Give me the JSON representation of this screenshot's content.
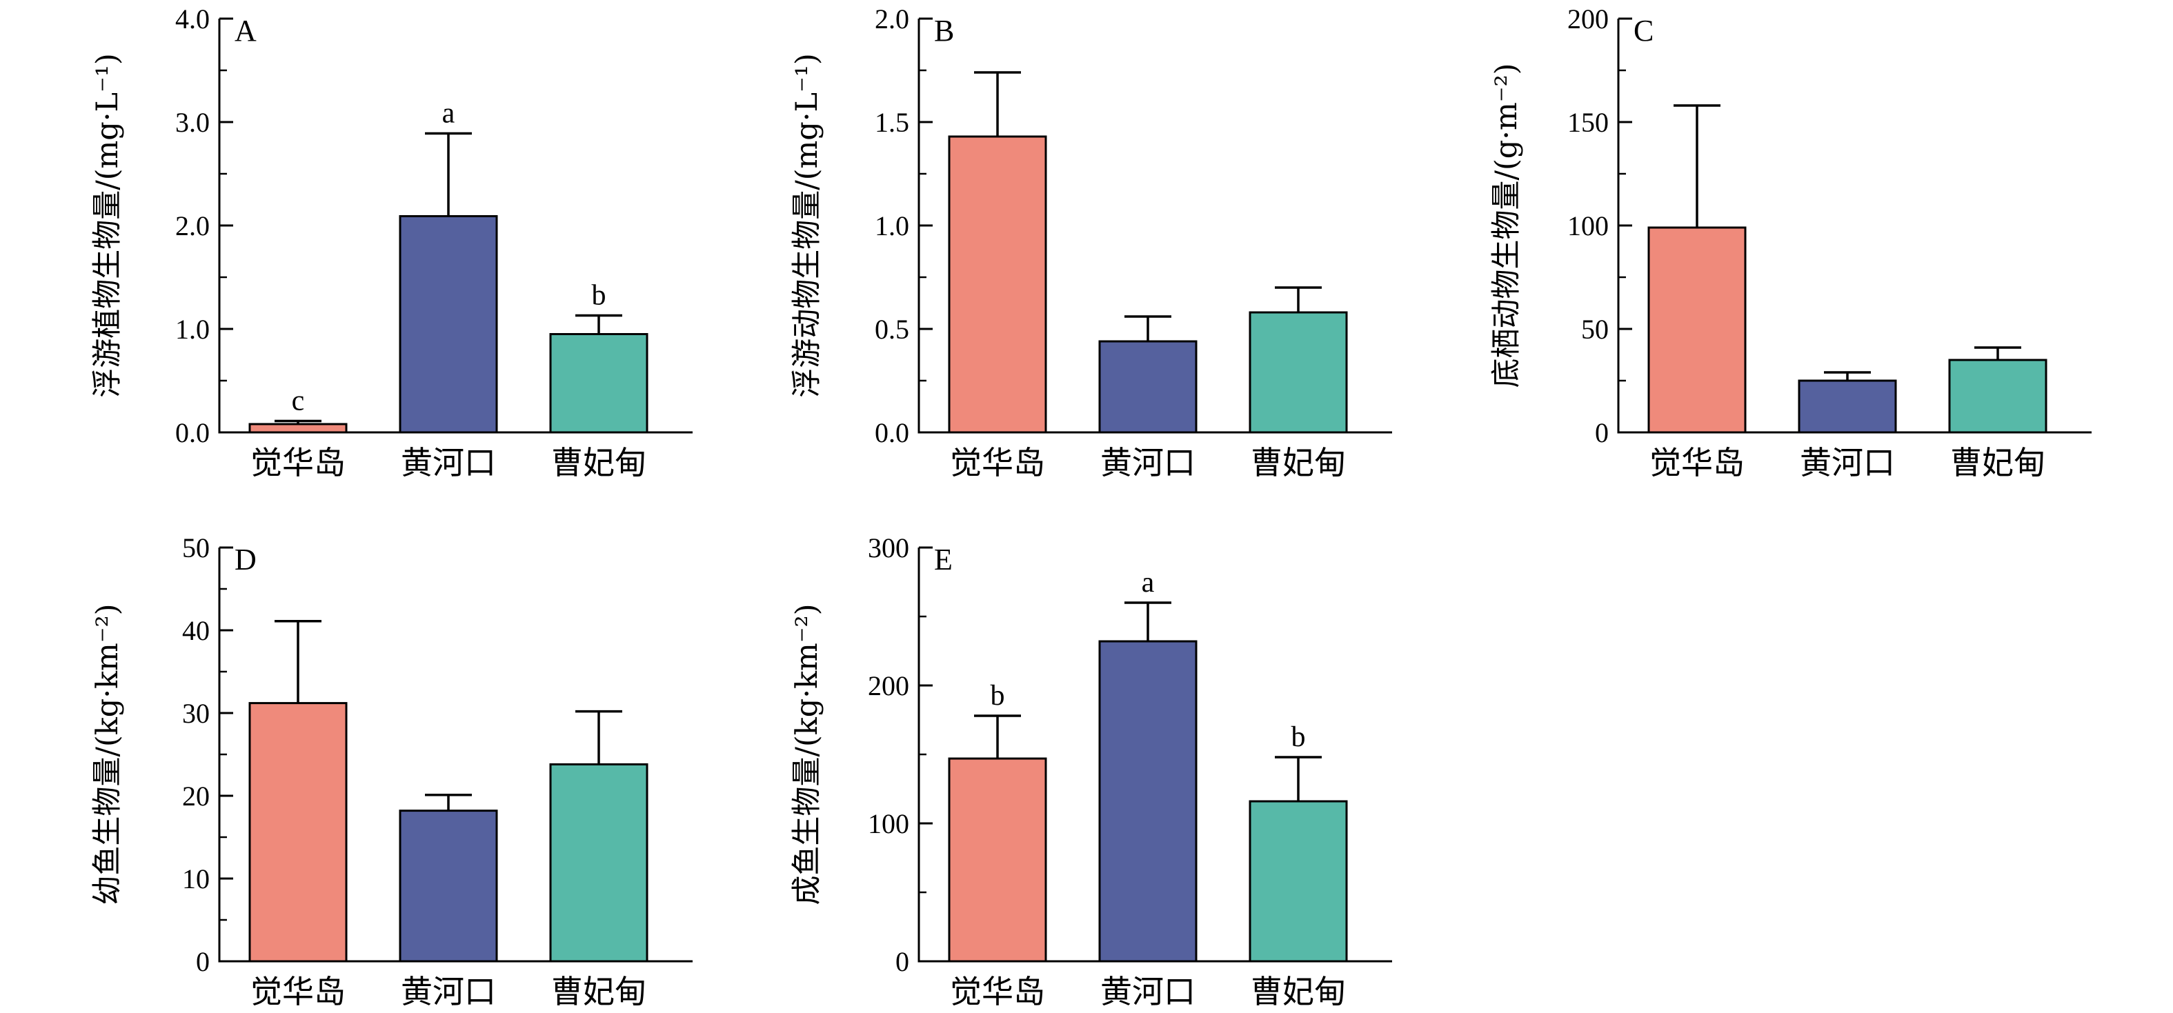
{
  "chart_data": [
    {
      "type": "bar",
      "panel": "A",
      "categories": [
        "觉华岛",
        "黄河口",
        "曹妃甸"
      ],
      "values": [
        0.08,
        2.09,
        0.95
      ],
      "errors": [
        0.03,
        0.8,
        0.18
      ],
      "significance": [
        "c",
        "a",
        "b"
      ],
      "ylabel": "浮游植物生物量/(mg·L⁻¹)",
      "ylim": [
        0,
        4
      ],
      "yticks": [
        "0.0",
        "1.0",
        "2.0",
        "3.0",
        "4.0"
      ],
      "ytick_values": [
        0,
        1,
        2,
        3,
        4
      ],
      "minor_step": 0.5,
      "colors": [
        "#EF8A7B",
        "#55619E",
        "#57B9A8"
      ]
    },
    {
      "type": "bar",
      "panel": "B",
      "categories": [
        "觉华岛",
        "黄河口",
        "曹妃甸"
      ],
      "values": [
        1.43,
        0.44,
        0.58
      ],
      "errors": [
        0.31,
        0.12,
        0.12
      ],
      "significance": [
        "",
        "",
        ""
      ],
      "ylabel": "浮游动物生物量/(mg·L⁻¹)",
      "ylim": [
        0,
        2
      ],
      "yticks": [
        "0.0",
        "0.5",
        "1.0",
        "1.5",
        "2.0"
      ],
      "ytick_values": [
        0,
        0.5,
        1,
        1.5,
        2
      ],
      "minor_step": 0.25,
      "colors": [
        "#EF8A7B",
        "#55619E",
        "#57B9A8"
      ]
    },
    {
      "type": "bar",
      "panel": "C",
      "categories": [
        "觉华岛",
        "黄河口",
        "曹妃甸"
      ],
      "values": [
        99,
        25,
        35
      ],
      "errors": [
        59,
        4,
        6
      ],
      "significance": [
        "",
        "",
        ""
      ],
      "ylabel": "底栖动物生物量/(g·m⁻²)",
      "ylim": [
        0,
        200
      ],
      "yticks": [
        "0",
        "50",
        "100",
        "150",
        "200"
      ],
      "ytick_values": [
        0,
        50,
        100,
        150,
        200
      ],
      "minor_step": 25,
      "colors": [
        "#EF8A7B",
        "#55619E",
        "#57B9A8"
      ]
    },
    {
      "type": "bar",
      "panel": "D",
      "categories": [
        "觉华岛",
        "黄河口",
        "曹妃甸"
      ],
      "values": [
        31.2,
        18.2,
        23.8
      ],
      "errors": [
        9.9,
        1.9,
        6.4
      ],
      "significance": [
        "",
        "",
        ""
      ],
      "ylabel": "幼鱼生物量/(kg·km⁻²)",
      "ylim": [
        0,
        50
      ],
      "yticks": [
        "0",
        "10",
        "20",
        "30",
        "40",
        "50"
      ],
      "ytick_values": [
        0,
        10,
        20,
        30,
        40,
        50
      ],
      "minor_step": 5,
      "colors": [
        "#EF8A7B",
        "#55619E",
        "#57B9A8"
      ]
    },
    {
      "type": "bar",
      "panel": "E",
      "categories": [
        "觉华岛",
        "黄河口",
        "曹妃甸"
      ],
      "values": [
        147,
        232,
        116
      ],
      "errors": [
        31,
        28,
        32
      ],
      "significance": [
        "b",
        "a",
        "b"
      ],
      "ylabel": "成鱼生物量/(kg·km⁻²)",
      "ylim": [
        0,
        300
      ],
      "yticks": [
        "0",
        "100",
        "200",
        "300"
      ],
      "ytick_values": [
        0,
        100,
        200,
        300
      ],
      "minor_step": 50,
      "colors": [
        "#EF8A7B",
        "#55619E",
        "#57B9A8"
      ]
    }
  ]
}
